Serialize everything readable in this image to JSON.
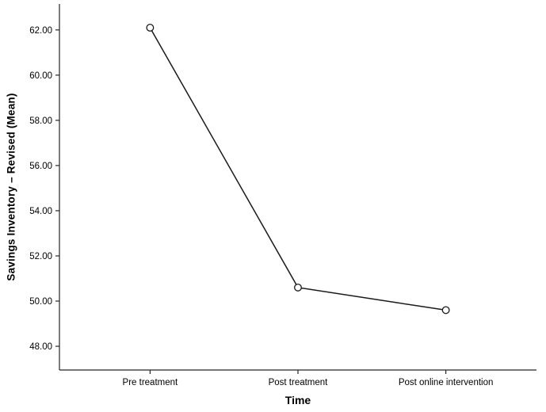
{
  "chart_data": {
    "type": "line",
    "categories": [
      "Pre treatment",
      "Post treatment",
      "Post online intervention"
    ],
    "values": [
      62.1,
      50.6,
      49.6
    ],
    "title": "",
    "xlabel": "Time",
    "ylabel": "Savings Inventory – Revised (Mean)",
    "ylim": [
      46.95,
      63.15
    ],
    "yticks": [
      48,
      50,
      52,
      54,
      56,
      58,
      60,
      62
    ],
    "ytick_decimals": 2,
    "grid": false,
    "legend": "none",
    "marker": "open-circle",
    "line_color": "#1a1a1a",
    "axis_color": "#262626",
    "tick_label_color": "#000000",
    "background_color": "#ffffff"
  }
}
